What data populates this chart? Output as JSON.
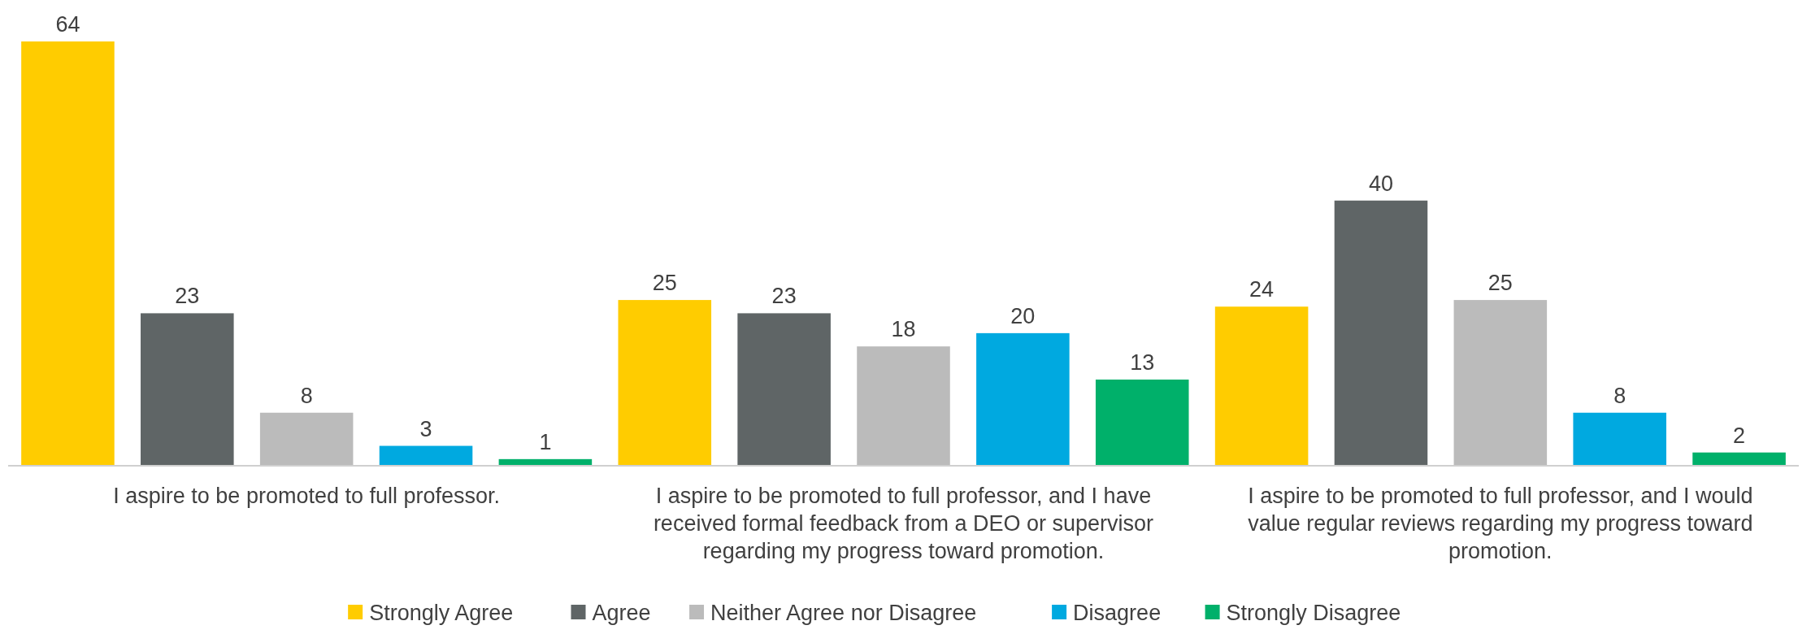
{
  "chart_data": {
    "type": "bar",
    "categories": [
      "I aspire to be promoted to full professor.",
      "I aspire to be promoted to full professor, and I have received formal feedback from a DEO or supervisor regarding my progress toward promotion.",
      "I aspire to be promoted to full professor, and I would value regular reviews regarding my progress toward promotion."
    ],
    "series": [
      {
        "name": "Strongly Agree",
        "color": "#ffcc00",
        "values": [
          64,
          25,
          24
        ]
      },
      {
        "name": "Agree",
        "color": "#5f6566",
        "values": [
          23,
          23,
          40
        ]
      },
      {
        "name": "Neither Agree nor Disagree",
        "color": "#bbbbbb",
        "values": [
          8,
          18,
          25
        ]
      },
      {
        "name": "Disagree",
        "color": "#00a9e0",
        "values": [
          3,
          20,
          8
        ]
      },
      {
        "name": "Strongly Disagree",
        "color": "#00b06a",
        "values": [
          1,
          13,
          2
        ]
      }
    ],
    "data_labels": true,
    "legend": "bottom"
  }
}
